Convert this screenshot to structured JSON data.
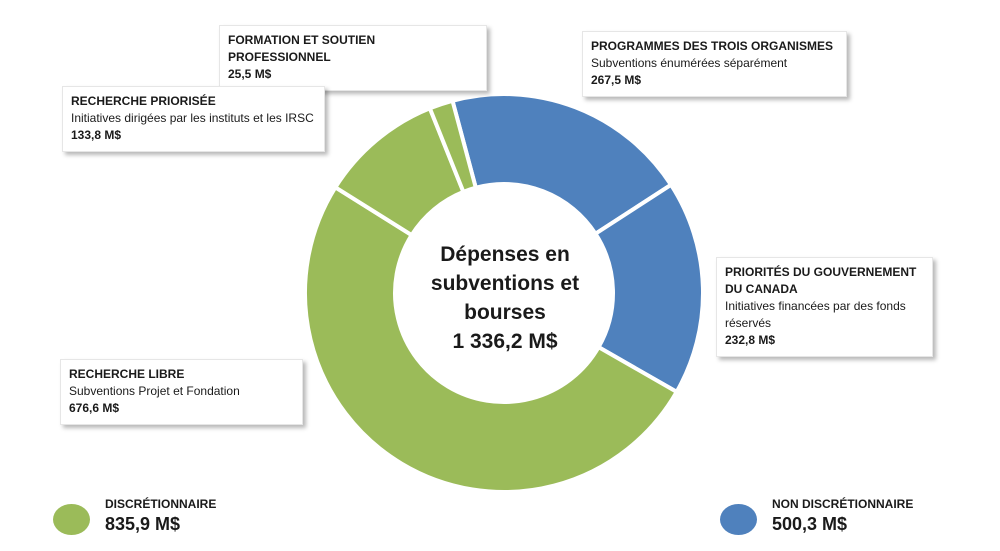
{
  "colors": {
    "discretionary": "#9bbb59",
    "non_discretionary": "#4f81bd"
  },
  "center": {
    "lines": [
      "Dépenses en",
      "subventions et",
      "bourses",
      "1 336,2 M$"
    ]
  },
  "callouts": {
    "formation": {
      "category": "FORMATION ET SOUTIEN PROFESSIONNEL",
      "description": "",
      "value": "25,5 M$"
    },
    "recherche_priorisee": {
      "category": "RECHERCHE PRIORISÉE",
      "description": "Initiatives dirigées par les instituts et les IRSC",
      "value": "133,8 M$"
    },
    "recherche_libre": {
      "category": "RECHERCHE LIBRE",
      "description": "Subventions Projet et Fondation",
      "value": "676,6 M$"
    },
    "trois_organismes": {
      "category": "PROGRAMMES DES TROIS ORGANISMES",
      "description": "Subventions énumérées séparément",
      "value": "267,5 M$"
    },
    "priorites_gouvernement": {
      "category": "PRIORITÉS DU GOUVERNEMENT DU CANADA",
      "description": "Initiatives financées par des fonds réservés",
      "value": "232,8 M$"
    }
  },
  "legend": {
    "discretionary": {
      "label": "DISCRÉTIONNAIRE",
      "amount": "835,9 M$"
    },
    "non_discretionary": {
      "label": "NON DISCRÉTIONNAIRE",
      "amount": "500,3 M$"
    }
  },
  "chart_data": {
    "type": "pie",
    "variant": "donut",
    "title": "",
    "total": 1336.2,
    "unit": "M$",
    "slices": [
      {
        "label": "PROGRAMMES DES TROIS ORGANISMES",
        "value": 267.5,
        "group": "non_discretionary"
      },
      {
        "label": "PRIORITÉS DU GOUVERNEMENT DU CANADA",
        "value": 232.8,
        "group": "non_discretionary"
      },
      {
        "label": "RECHERCHE LIBRE",
        "value": 676.6,
        "group": "discretionary"
      },
      {
        "label": "RECHERCHE PRIORISÉE",
        "value": 133.8,
        "group": "discretionary"
      },
      {
        "label": "FORMATION ET SOUTIEN PROFESSIONNEL",
        "value": 25.5,
        "group": "discretionary"
      }
    ],
    "groups": [
      {
        "name": "DISCRÉTIONNAIRE",
        "value": 835.9
      },
      {
        "name": "NON DISCRÉTIONNAIRE",
        "value": 500.3
      }
    ]
  }
}
